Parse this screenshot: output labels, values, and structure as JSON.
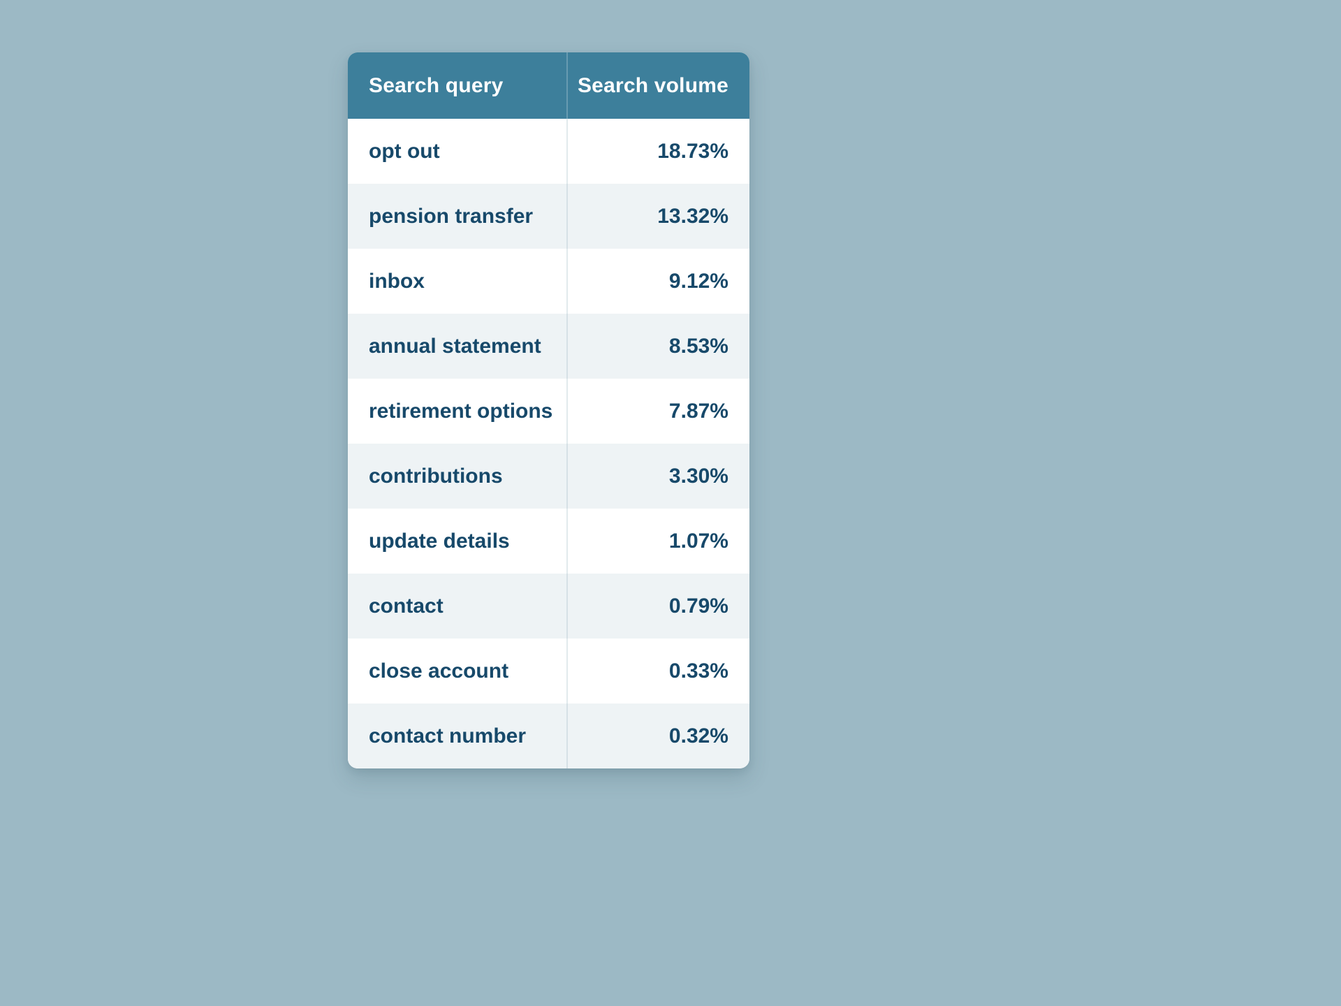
{
  "colors": {
    "page_background": "#9cb9c5",
    "header_background": "#3d7f9b",
    "header_text": "#ffffff",
    "row_alt_background": "#eef3f5",
    "row_background": "#ffffff",
    "body_text": "#17496a"
  },
  "chart_data": {
    "type": "table",
    "columns": [
      "Search query",
      "Search volume"
    ],
    "rows": [
      {
        "query": "opt out",
        "volume": "18.73%"
      },
      {
        "query": "pension transfer",
        "volume": "13.32%"
      },
      {
        "query": "inbox",
        "volume": "9.12%"
      },
      {
        "query": "annual statement",
        "volume": "8.53%"
      },
      {
        "query": "retirement options",
        "volume": "7.87%"
      },
      {
        "query": "contributions",
        "volume": "3.30%"
      },
      {
        "query": "update details",
        "volume": "1.07%"
      },
      {
        "query": "contact",
        "volume": "0.79%"
      },
      {
        "query": "close account",
        "volume": "0.33%"
      },
      {
        "query": "contact number",
        "volume": "0.32%"
      }
    ]
  }
}
